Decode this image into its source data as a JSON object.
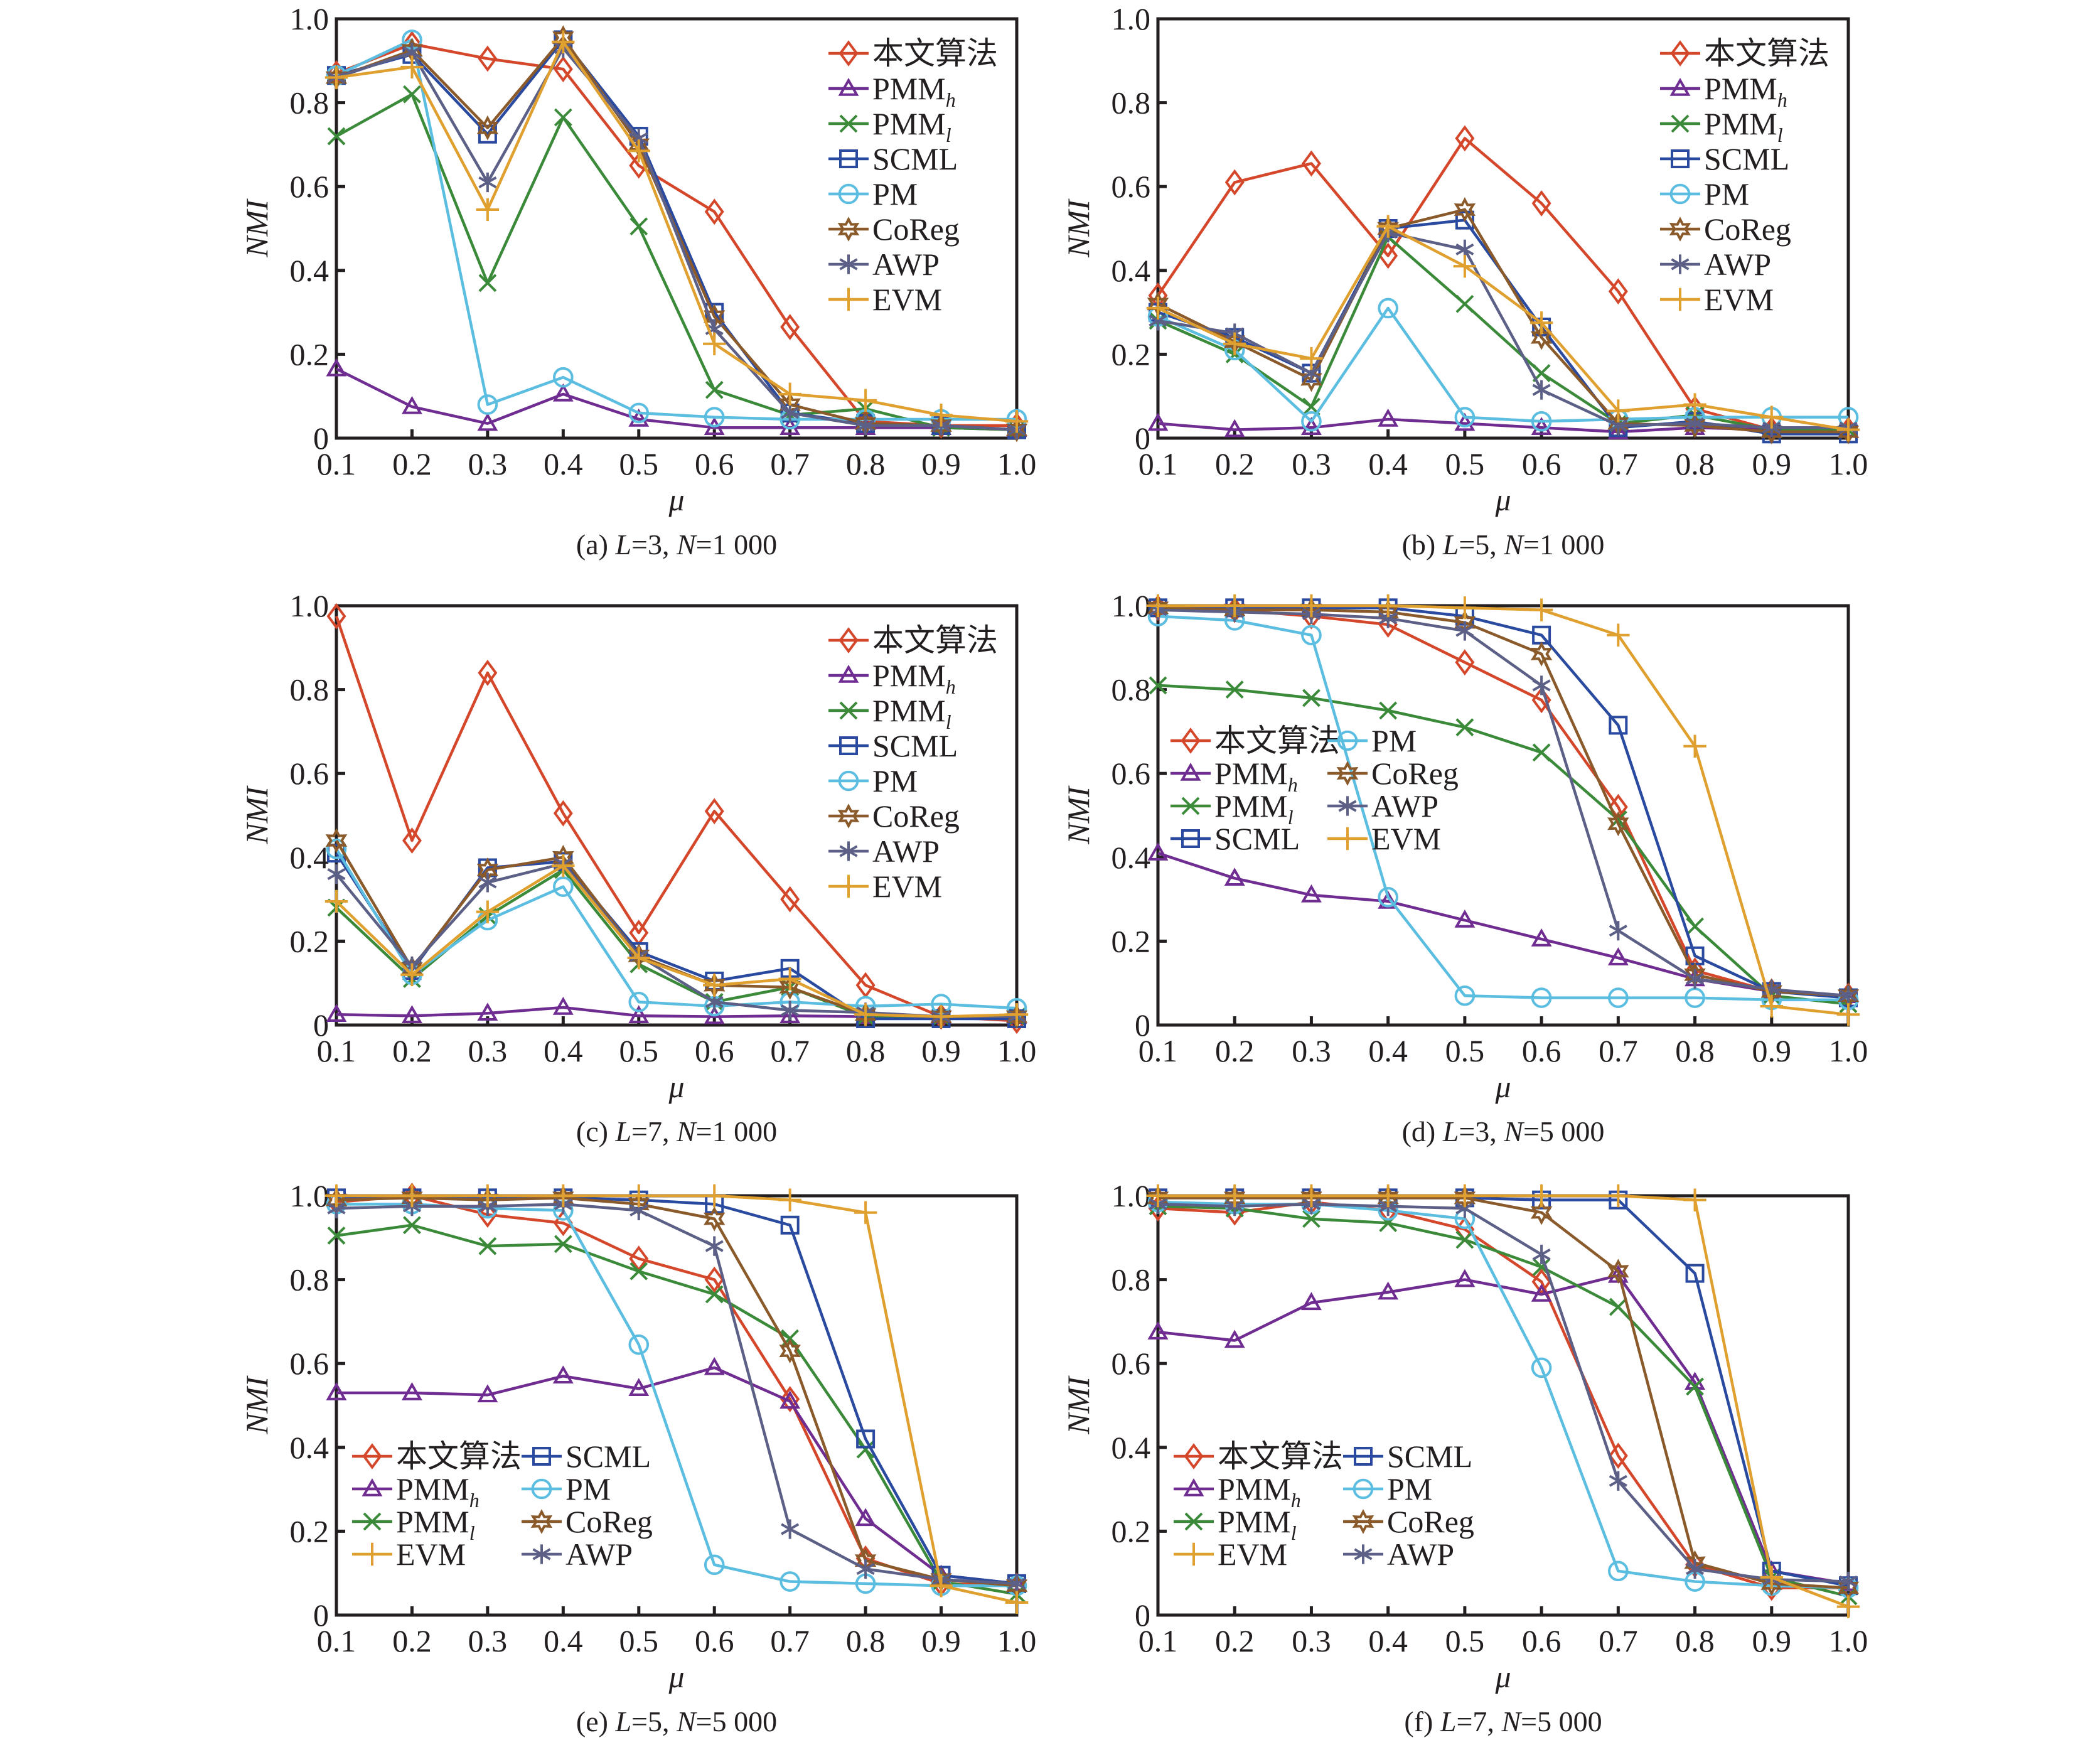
{
  "figure": {
    "ylabel": "NMI",
    "xlabel": "μ"
  },
  "series_styles": [
    {
      "name": "本文算法",
      "sub": "",
      "color": "#d4472a",
      "marker": "diamond"
    },
    {
      "name": "PMM",
      "sub": "h",
      "color": "#6f2c91",
      "marker": "triangle"
    },
    {
      "name": "PMM",
      "sub": "l",
      "color": "#3a8a3a",
      "marker": "x"
    },
    {
      "name": "SCML",
      "sub": "",
      "color": "#2a4aa0",
      "marker": "square"
    },
    {
      "name": "PM",
      "sub": "",
      "color": "#5bbde0",
      "marker": "circle"
    },
    {
      "name": "CoReg",
      "sub": "",
      "color": "#8a5a2b",
      "marker": "star6"
    },
    {
      "name": "AWP",
      "sub": "",
      "color": "#5c5f86",
      "marker": "asterisk"
    },
    {
      "name": "EVM",
      "sub": "",
      "color": "#e0a030",
      "marker": "plus"
    }
  ],
  "chart_data": [
    {
      "type": "line",
      "id": "a",
      "caption": {
        "prefix": "(a) ",
        "L": "L",
        "Lval": "=3, ",
        "N": "N",
        "Nval": "=1 000"
      },
      "xlabel": "μ",
      "ylabel": "NMI",
      "x": [
        0.1,
        0.2,
        0.3,
        0.4,
        0.5,
        0.6,
        0.7,
        0.8,
        0.9,
        1.0
      ],
      "xticks": [
        "0.1",
        "0.2",
        "0.3",
        "0.4",
        "0.5",
        "0.6",
        "0.7",
        "0.8",
        "0.9",
        "1.0"
      ],
      "yticks": [
        "0",
        "0.2",
        "0.4",
        "0.6",
        "0.8",
        "1.0"
      ],
      "ylim": [
        0,
        1.0
      ],
      "grid": false,
      "legend": {
        "placement": "top-right",
        "columns": 1,
        "order": [
          0,
          1,
          2,
          3,
          4,
          5,
          6,
          7
        ]
      },
      "series": [
        {
          "name": "本文算法",
          "values": [
            0.87,
            0.94,
            0.905,
            0.88,
            0.65,
            0.54,
            0.265,
            0.04,
            0.03,
            0.03
          ]
        },
        {
          "name": "PMMh",
          "values": [
            0.165,
            0.075,
            0.035,
            0.105,
            0.045,
            0.025,
            0.025,
            0.025,
            0.025,
            0.02
          ]
        },
        {
          "name": "PMMl",
          "values": [
            0.72,
            0.82,
            0.37,
            0.765,
            0.505,
            0.115,
            0.055,
            0.07,
            0.025,
            0.02
          ]
        },
        {
          "name": "SCML",
          "values": [
            0.865,
            0.915,
            0.725,
            0.95,
            0.72,
            0.3,
            0.06,
            0.035,
            0.03,
            0.02
          ]
        },
        {
          "name": "PM",
          "values": [
            0.865,
            0.95,
            0.08,
            0.145,
            0.06,
            0.05,
            0.045,
            0.045,
            0.045,
            0.045
          ]
        },
        {
          "name": "CoReg",
          "values": [
            0.86,
            0.925,
            0.74,
            0.955,
            0.7,
            0.29,
            0.08,
            0.035,
            0.03,
            0.02
          ]
        },
        {
          "name": "AWP",
          "values": [
            0.86,
            0.92,
            0.61,
            0.93,
            0.715,
            0.26,
            0.06,
            0.03,
            0.03,
            0.02
          ]
        },
        {
          "name": "EVM",
          "values": [
            0.86,
            0.885,
            0.545,
            0.945,
            0.685,
            0.225,
            0.105,
            0.09,
            0.055,
            0.04
          ]
        }
      ]
    },
    {
      "type": "line",
      "id": "b",
      "caption": {
        "prefix": "(b) ",
        "L": "L",
        "Lval": "=5, ",
        "N": "N",
        "Nval": "=1 000"
      },
      "xlabel": "μ",
      "ylabel": "NMI",
      "x": [
        0.1,
        0.2,
        0.3,
        0.4,
        0.5,
        0.6,
        0.7,
        0.8,
        0.9,
        1.0
      ],
      "xticks": [
        "0.1",
        "0.2",
        "0.3",
        "0.4",
        "0.5",
        "0.6",
        "0.7",
        "0.8",
        "0.9",
        "1.0"
      ],
      "yticks": [
        "0",
        "0.2",
        "0.4",
        "0.6",
        "0.8",
        "1.0"
      ],
      "ylim": [
        0,
        1.0
      ],
      "grid": false,
      "legend": {
        "placement": "top-right",
        "columns": 1,
        "order": [
          0,
          1,
          2,
          3,
          4,
          5,
          6,
          7
        ]
      },
      "series": [
        {
          "name": "本文算法",
          "values": [
            0.34,
            0.61,
            0.655,
            0.435,
            0.715,
            0.56,
            0.35,
            0.07,
            0.02,
            0.02
          ]
        },
        {
          "name": "PMMh",
          "values": [
            0.035,
            0.02,
            0.025,
            0.045,
            0.035,
            0.025,
            0.015,
            0.025,
            0.02,
            0.02
          ]
        },
        {
          "name": "PMMl",
          "values": [
            0.28,
            0.2,
            0.075,
            0.48,
            0.32,
            0.155,
            0.035,
            0.055,
            0.02,
            0.02
          ]
        },
        {
          "name": "SCML",
          "values": [
            0.3,
            0.24,
            0.155,
            0.5,
            0.52,
            0.265,
            0.025,
            0.04,
            0.01,
            0.01
          ]
        },
        {
          "name": "PM",
          "values": [
            0.29,
            0.21,
            0.04,
            0.31,
            0.05,
            0.04,
            0.045,
            0.05,
            0.05,
            0.05
          ]
        },
        {
          "name": "CoReg",
          "values": [
            0.32,
            0.23,
            0.14,
            0.5,
            0.545,
            0.24,
            0.035,
            0.03,
            0.015,
            0.015
          ]
        },
        {
          "name": "AWP",
          "values": [
            0.28,
            0.25,
            0.155,
            0.49,
            0.45,
            0.115,
            0.03,
            0.035,
            0.025,
            0.025
          ]
        },
        {
          "name": "EVM",
          "values": [
            0.31,
            0.225,
            0.19,
            0.505,
            0.41,
            0.275,
            0.065,
            0.08,
            0.05,
            0.02
          ]
        }
      ]
    },
    {
      "type": "line",
      "id": "c",
      "caption": {
        "prefix": "(c) ",
        "L": "L",
        "Lval": "=7, ",
        "N": "N",
        "Nval": "=1 000"
      },
      "xlabel": "μ",
      "ylabel": "NMI",
      "x": [
        0.1,
        0.2,
        0.3,
        0.4,
        0.5,
        0.6,
        0.7,
        0.8,
        0.9,
        1.0
      ],
      "xticks": [
        "0.1",
        "0.2",
        "0.3",
        "0.4",
        "0.5",
        "0.6",
        "0.7",
        "0.8",
        "0.9",
        "1.0"
      ],
      "yticks": [
        "0",
        "0.2",
        "0.4",
        "0.6",
        "0.8",
        "1.0"
      ],
      "ylim": [
        0,
        1.0
      ],
      "grid": false,
      "legend": {
        "placement": "top-right",
        "columns": 1,
        "order": [
          0,
          1,
          2,
          3,
          4,
          5,
          6,
          7
        ]
      },
      "series": [
        {
          "name": "本文算法",
          "values": [
            0.975,
            0.44,
            0.84,
            0.505,
            0.22,
            0.51,
            0.3,
            0.095,
            0.02,
            0.01
          ]
        },
        {
          "name": "PMMh",
          "values": [
            0.025,
            0.022,
            0.028,
            0.042,
            0.022,
            0.02,
            0.022,
            0.02,
            0.02,
            0.02
          ]
        },
        {
          "name": "PMMl",
          "values": [
            0.28,
            0.11,
            0.26,
            0.37,
            0.145,
            0.055,
            0.09,
            0.02,
            0.02,
            0.02
          ]
        },
        {
          "name": "SCML",
          "values": [
            0.41,
            0.13,
            0.375,
            0.39,
            0.175,
            0.105,
            0.135,
            0.015,
            0.015,
            0.015
          ]
        },
        {
          "name": "PM",
          "values": [
            0.42,
            0.12,
            0.25,
            0.33,
            0.055,
            0.045,
            0.055,
            0.045,
            0.05,
            0.04
          ]
        },
        {
          "name": "CoReg",
          "values": [
            0.44,
            0.135,
            0.37,
            0.4,
            0.165,
            0.095,
            0.09,
            0.025,
            0.02,
            0.02
          ]
        },
        {
          "name": "AWP",
          "values": [
            0.36,
            0.14,
            0.34,
            0.385,
            0.165,
            0.055,
            0.035,
            0.03,
            0.02,
            0.02
          ]
        },
        {
          "name": "EVM",
          "values": [
            0.295,
            0.12,
            0.27,
            0.38,
            0.16,
            0.095,
            0.11,
            0.025,
            0.02,
            0.025
          ]
        }
      ]
    },
    {
      "type": "line",
      "id": "d",
      "caption": {
        "prefix": "(d) ",
        "L": "L",
        "Lval": "=3, ",
        "N": "N",
        "Nval": "=5 000"
      },
      "xlabel": "μ",
      "ylabel": "NMI",
      "x": [
        0.1,
        0.2,
        0.3,
        0.4,
        0.5,
        0.6,
        0.7,
        0.8,
        0.9,
        1.0
      ],
      "xticks": [
        "0.1",
        "0.2",
        "0.3",
        "0.4",
        "0.5",
        "0.6",
        "0.7",
        "0.8",
        "0.9",
        "1.0"
      ],
      "yticks": [
        "0",
        "0.2",
        "0.4",
        "0.6",
        "0.8",
        "1.0"
      ],
      "ylim": [
        0,
        1.0
      ],
      "grid": false,
      "legend": {
        "placement": "center-left",
        "columns": 2,
        "order": [
          0,
          1,
          2,
          3,
          4,
          5,
          6,
          7
        ]
      },
      "series": [
        {
          "name": "本文算法",
          "values": [
            0.995,
            0.99,
            0.975,
            0.955,
            0.865,
            0.775,
            0.52,
            0.13,
            0.08,
            0.07
          ]
        },
        {
          "name": "PMMh",
          "values": [
            0.41,
            0.35,
            0.31,
            0.295,
            0.25,
            0.205,
            0.16,
            0.11,
            0.08,
            0.07
          ]
        },
        {
          "name": "PMMl",
          "values": [
            0.81,
            0.8,
            0.78,
            0.75,
            0.71,
            0.65,
            0.49,
            0.235,
            0.07,
            0.05
          ]
        },
        {
          "name": "SCML",
          "values": [
            0.995,
            0.995,
            0.995,
            0.995,
            0.975,
            0.93,
            0.715,
            0.165,
            0.08,
            0.065
          ]
        },
        {
          "name": "PM",
          "values": [
            0.975,
            0.965,
            0.93,
            0.305,
            0.07,
            0.065,
            0.065,
            0.065,
            0.06,
            0.06
          ]
        },
        {
          "name": "CoReg",
          "values": [
            0.995,
            0.99,
            0.99,
            0.985,
            0.96,
            0.885,
            0.48,
            0.12,
            0.08,
            0.07
          ]
        },
        {
          "name": "AWP",
          "values": [
            0.99,
            0.985,
            0.98,
            0.97,
            0.94,
            0.81,
            0.225,
            0.11,
            0.085,
            0.07
          ]
        },
        {
          "name": "EVM",
          "values": [
            1.0,
            1.0,
            1.0,
            1.0,
            0.995,
            0.99,
            0.93,
            0.665,
            0.045,
            0.025
          ]
        }
      ]
    },
    {
      "type": "line",
      "id": "e",
      "caption": {
        "prefix": "(e) ",
        "L": "L",
        "Lval": "=5, ",
        "N": "N",
        "Nval": "=5 000"
      },
      "xlabel": "μ",
      "ylabel": "NMI",
      "x": [
        0.1,
        0.2,
        0.3,
        0.4,
        0.5,
        0.6,
        0.7,
        0.8,
        0.9,
        1.0
      ],
      "xticks": [
        "0.1",
        "0.2",
        "0.3",
        "0.4",
        "0.5",
        "0.6",
        "0.7",
        "0.8",
        "0.9",
        "1.0"
      ],
      "yticks": [
        "0",
        "0.2",
        "0.4",
        "0.6",
        "0.8",
        "1.0"
      ],
      "ylim": [
        0,
        1.0
      ],
      "grid": false,
      "legend": {
        "placement": "bottom-left",
        "columns": 2,
        "order": [
          0,
          1,
          2,
          7,
          3,
          4,
          5,
          6
        ]
      },
      "series": [
        {
          "name": "本文算法",
          "values": [
            0.985,
            1.0,
            0.955,
            0.935,
            0.85,
            0.8,
            0.515,
            0.135,
            0.075,
            0.07
          ]
        },
        {
          "name": "PMMh",
          "values": [
            0.53,
            0.53,
            0.525,
            0.57,
            0.54,
            0.59,
            0.51,
            0.23,
            0.095,
            0.075
          ]
        },
        {
          "name": "PMMl",
          "values": [
            0.905,
            0.93,
            0.88,
            0.885,
            0.82,
            0.765,
            0.66,
            0.395,
            0.08,
            0.05
          ]
        },
        {
          "name": "SCML",
          "values": [
            0.995,
            0.995,
            0.995,
            0.995,
            0.99,
            0.98,
            0.93,
            0.42,
            0.095,
            0.075
          ]
        },
        {
          "name": "PM",
          "values": [
            0.98,
            0.98,
            0.97,
            0.965,
            0.645,
            0.12,
            0.08,
            0.075,
            0.07,
            0.07
          ]
        },
        {
          "name": "CoReg",
          "values": [
            0.99,
            0.995,
            0.99,
            0.995,
            0.98,
            0.945,
            0.63,
            0.13,
            0.085,
            0.07
          ]
        },
        {
          "name": "AWP",
          "values": [
            0.97,
            0.975,
            0.975,
            0.98,
            0.965,
            0.88,
            0.205,
            0.11,
            0.085,
            0.075
          ]
        },
        {
          "name": "EVM",
          "values": [
            1.0,
            1.0,
            1.0,
            1.0,
            1.0,
            1.0,
            0.99,
            0.96,
            0.07,
            0.03
          ]
        }
      ]
    },
    {
      "type": "line",
      "id": "f",
      "caption": {
        "prefix": "(f) ",
        "L": "L",
        "Lval": "=7, ",
        "N": "N",
        "Nval": "=5 000"
      },
      "xlabel": "μ",
      "ylabel": "NMI",
      "x": [
        0.1,
        0.2,
        0.3,
        0.4,
        0.5,
        0.6,
        0.7,
        0.8,
        0.9,
        1.0
      ],
      "xticks": [
        "0.1",
        "0.2",
        "0.3",
        "0.4",
        "0.5",
        "0.6",
        "0.7",
        "0.8",
        "0.9",
        "1.0"
      ],
      "yticks": [
        "0",
        "0.2",
        "0.4",
        "0.6",
        "0.8",
        "1.0"
      ],
      "ylim": [
        0,
        1.0
      ],
      "grid": false,
      "legend": {
        "placement": "bottom-left",
        "columns": 2,
        "order": [
          0,
          1,
          2,
          7,
          3,
          4,
          5,
          6
        ]
      },
      "series": [
        {
          "name": "本文算法",
          "values": [
            0.97,
            0.96,
            0.985,
            0.965,
            0.92,
            0.795,
            0.38,
            0.12,
            0.065,
            0.065
          ]
        },
        {
          "name": "PMMh",
          "values": [
            0.675,
            0.655,
            0.745,
            0.77,
            0.8,
            0.765,
            0.81,
            0.555,
            0.105,
            0.075
          ]
        },
        {
          "name": "PMMl",
          "values": [
            0.975,
            0.97,
            0.945,
            0.935,
            0.895,
            0.83,
            0.735,
            0.545,
            0.09,
            0.045
          ]
        },
        {
          "name": "SCML",
          "values": [
            0.995,
            0.995,
            0.995,
            0.995,
            0.995,
            0.99,
            0.99,
            0.815,
            0.105,
            0.07
          ]
        },
        {
          "name": "PM",
          "values": [
            0.985,
            0.98,
            0.98,
            0.965,
            0.945,
            0.59,
            0.105,
            0.08,
            0.07,
            0.065
          ]
        },
        {
          "name": "CoReg",
          "values": [
            0.995,
            0.995,
            0.995,
            0.995,
            0.995,
            0.96,
            0.82,
            0.125,
            0.075,
            0.065
          ]
        },
        {
          "name": "AWP",
          "values": [
            0.98,
            0.975,
            0.98,
            0.975,
            0.97,
            0.86,
            0.32,
            0.11,
            0.085,
            0.08
          ]
        },
        {
          "name": "EVM",
          "values": [
            1.0,
            1.0,
            1.0,
            1.0,
            1.0,
            1.0,
            1.0,
            0.99,
            0.09,
            0.02
          ]
        }
      ]
    }
  ]
}
